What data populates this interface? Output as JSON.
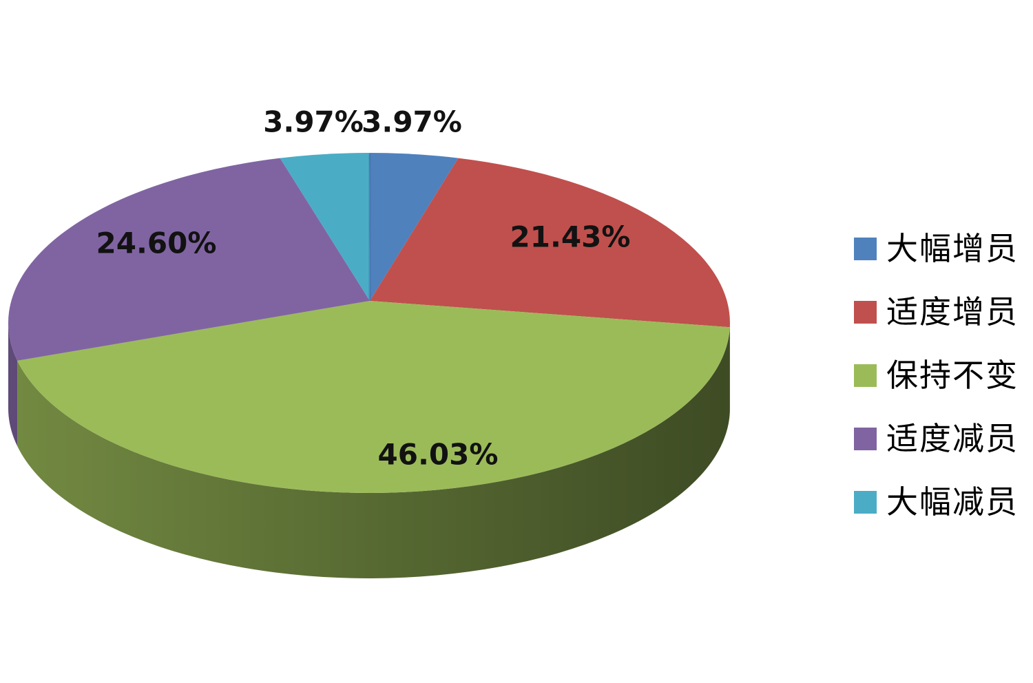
{
  "chart_data": {
    "type": "pie",
    "variant": "3d",
    "title": "",
    "start_angle_deg": 0,
    "direction": "clockwise",
    "legend_position": "right",
    "background": "#FFFFFF",
    "label_color": "#000000",
    "slices": [
      {
        "label": "大幅增员",
        "value_pct": 3.97,
        "display": "3.97%",
        "color": "#4F81BD"
      },
      {
        "label": "适度增员",
        "value_pct": 21.43,
        "display": "21.43%",
        "color": "#C0504D"
      },
      {
        "label": "保持不变",
        "value_pct": 46.03,
        "display": "46.03%",
        "color": "#9BBB59"
      },
      {
        "label": "适度减员",
        "value_pct": 24.6,
        "display": "24.60%",
        "color": "#8064A2"
      },
      {
        "label": "大幅减员",
        "value_pct": 3.97,
        "display": "3.97%",
        "color": "#4BACC6"
      }
    ]
  }
}
